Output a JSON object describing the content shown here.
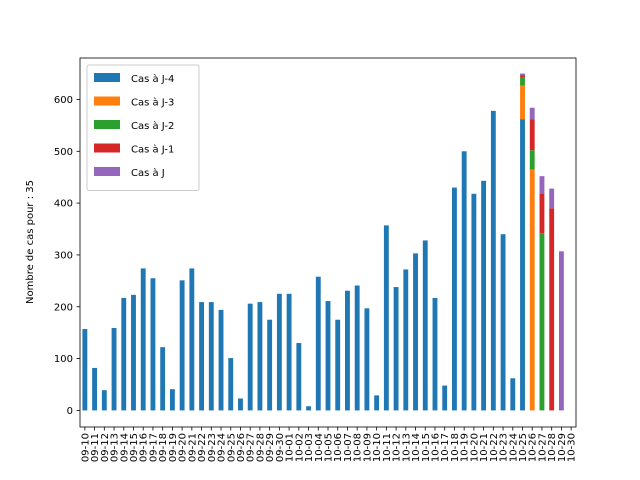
{
  "chart_data": {
    "type": "bar",
    "stacked": true,
    "xlabel": "",
    "ylabel": "Nombre de cas pour : 35",
    "ylim": [
      -32,
      680
    ],
    "yticks": [
      0,
      100,
      200,
      300,
      400,
      500,
      600
    ],
    "grid": false,
    "legend_position": "top-left",
    "categories": [
      "09-10",
      "09-11",
      "09-12",
      "09-13",
      "09-14",
      "09-15",
      "09-16",
      "09-17",
      "09-18",
      "09-19",
      "09-20",
      "09-21",
      "09-22",
      "09-23",
      "09-24",
      "09-25",
      "09-26",
      "09-27",
      "09-28",
      "09-29",
      "09-30",
      "10-01",
      "10-02",
      "10-03",
      "10-04",
      "10-05",
      "10-06",
      "10-07",
      "10-08",
      "10-09",
      "10-10",
      "10-11",
      "10-12",
      "10-13",
      "10-14",
      "10-15",
      "10-16",
      "10-17",
      "10-18",
      "10-19",
      "10-20",
      "10-21",
      "10-22",
      "10-23",
      "10-24",
      "10-25",
      "10-26",
      "10-27",
      "10-28",
      "10-29",
      "10-30"
    ],
    "series": [
      {
        "name": "Cas à J-4",
        "color": "#1f77b4",
        "values": [
          157,
          82,
          39,
          159,
          217,
          223,
          274,
          255,
          122,
          41,
          251,
          274,
          209,
          209,
          194,
          101,
          23,
          206,
          209,
          175,
          225,
          225,
          130,
          8,
          258,
          211,
          175,
          231,
          241,
          197,
          29,
          357,
          238,
          272,
          303,
          328,
          217,
          48,
          430,
          500,
          418,
          443,
          578,
          340,
          62,
          562,
          0,
          0,
          0,
          0,
          0
        ]
      },
      {
        "name": "Cas à J-3",
        "color": "#ff7f0e",
        "values": [
          0,
          0,
          0,
          0,
          0,
          0,
          0,
          0,
          0,
          0,
          0,
          0,
          0,
          0,
          0,
          0,
          0,
          0,
          0,
          0,
          0,
          0,
          0,
          0,
          0,
          0,
          0,
          0,
          0,
          0,
          0,
          0,
          0,
          0,
          0,
          0,
          0,
          0,
          0,
          0,
          0,
          0,
          0,
          0,
          0,
          65,
          465,
          0,
          0,
          0,
          0
        ]
      },
      {
        "name": "Cas à J-2",
        "color": "#2ca02c",
        "values": [
          0,
          0,
          0,
          0,
          0,
          0,
          0,
          0,
          0,
          0,
          0,
          0,
          0,
          0,
          0,
          0,
          0,
          0,
          0,
          0,
          0,
          0,
          0,
          0,
          0,
          0,
          0,
          0,
          0,
          0,
          0,
          0,
          0,
          0,
          0,
          0,
          0,
          0,
          0,
          0,
          0,
          0,
          0,
          0,
          0,
          15,
          37,
          342,
          0,
          0,
          0
        ]
      },
      {
        "name": "Cas à J-1",
        "color": "#d62728",
        "values": [
          0,
          0,
          0,
          0,
          0,
          0,
          0,
          0,
          0,
          0,
          0,
          0,
          0,
          0,
          0,
          0,
          0,
          0,
          0,
          0,
          0,
          0,
          0,
          0,
          0,
          0,
          0,
          0,
          0,
          0,
          0,
          0,
          0,
          0,
          0,
          0,
          0,
          0,
          0,
          0,
          0,
          0,
          0,
          0,
          0,
          5,
          60,
          77,
          390,
          0,
          0
        ]
      },
      {
        "name": "Cas à J",
        "color": "#9467bd",
        "values": [
          0,
          0,
          0,
          0,
          0,
          0,
          0,
          0,
          0,
          0,
          0,
          0,
          0,
          0,
          0,
          0,
          0,
          0,
          0,
          0,
          0,
          0,
          0,
          0,
          0,
          0,
          0,
          0,
          0,
          0,
          0,
          0,
          0,
          0,
          0,
          0,
          0,
          0,
          0,
          0,
          0,
          0,
          0,
          0,
          0,
          3,
          22,
          33,
          38,
          307,
          0
        ]
      }
    ]
  }
}
